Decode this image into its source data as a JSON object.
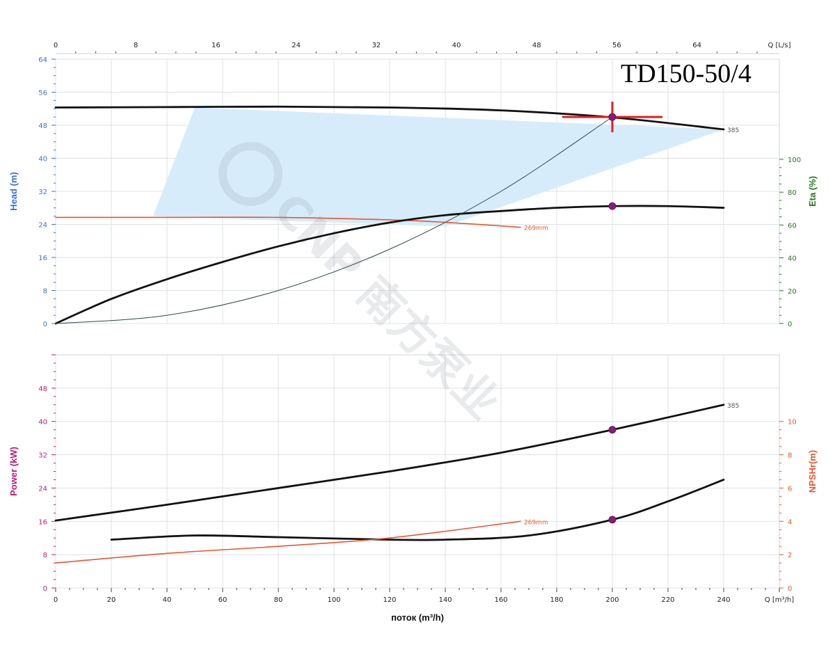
{
  "chart_data": [
    {
      "type": "line",
      "title": "TD150-50/4",
      "x_axis": {
        "label": "",
        "unit_label": "Q [m³/h]",
        "range": [
          0,
          260
        ],
        "ticks": [
          0,
          20,
          40,
          60,
          80,
          100,
          120,
          140,
          160,
          180,
          200,
          220,
          240
        ]
      },
      "x2_axis": {
        "label": "",
        "unit_label": "Q [L/s]",
        "range": [
          0,
          72.22
        ],
        "ticks": [
          0,
          8,
          16,
          24,
          32,
          40,
          48,
          56,
          64
        ]
      },
      "y_axis": {
        "label": "Head (m)",
        "range": [
          0,
          64
        ],
        "ticks": [
          0,
          8,
          16,
          24,
          32,
          40,
          48,
          56,
          64
        ],
        "color": "#3d6fd6"
      },
      "y2_axis": {
        "label": "Eta (%)",
        "range": [
          0,
          161
        ],
        "ticks": [
          0,
          20,
          40,
          60,
          80,
          100
        ],
        "color": "#1f7a1f"
      },
      "series": [
        {
          "name": "385",
          "axis": "y",
          "color": "#111111",
          "x": [
            0,
            40,
            80,
            120,
            160,
            200,
            240
          ],
          "y": [
            52.3,
            52.4,
            52.5,
            52.3,
            51.6,
            49.9,
            47.0
          ]
        },
        {
          "name": "269mm",
          "axis": "y",
          "color": "#e8572a",
          "x": [
            0,
            40,
            80,
            120,
            140,
            167
          ],
          "y": [
            25.7,
            25.7,
            25.7,
            25.1,
            24.5,
            23.3
          ]
        },
        {
          "name": "",
          "axis": "y2",
          "color": "#111111",
          "x": [
            0,
            20,
            40,
            60,
            80,
            100,
            120,
            140,
            160,
            180,
            200,
            220,
            240
          ],
          "y": [
            0,
            15,
            27,
            37.5,
            47,
            55,
            61.5,
            66,
            68.5,
            70.5,
            71.5,
            71.5,
            70.5
          ]
        },
        {
          "name": "",
          "axis": "y",
          "color": "#2c4a4a",
          "x": [
            0,
            40,
            80,
            120,
            160,
            200
          ],
          "y": [
            0,
            2,
            8,
            18,
            32,
            50
          ]
        }
      ],
      "envelope": {
        "color": "#d6ecfb",
        "points": [
          [
            35,
            26
          ],
          [
            50,
            52.3
          ],
          [
            240,
            47
          ],
          [
            140,
            23.5
          ]
        ]
      },
      "duty_point": {
        "x": 200,
        "y": 50,
        "color": "#e02020"
      },
      "markers": [
        {
          "x": 200,
          "y": 50
        },
        {
          "x": 200,
          "y": 71.5,
          "axis": "y2"
        }
      ],
      "marker_color": "#8b1a7a",
      "grid": true
    },
    {
      "type": "line",
      "x_axis": {
        "label": "поток (m³/h)",
        "unit_label": "Q [m³/h]",
        "range": [
          0,
          260
        ],
        "ticks": [
          0,
          20,
          40,
          60,
          80,
          100,
          120,
          140,
          160,
          180,
          200,
          220,
          240
        ]
      },
      "y_axis": {
        "label": "Power (kW)",
        "range": [
          0,
          56
        ],
        "ticks": [
          0,
          8,
          16,
          24,
          32,
          40,
          48
        ],
        "color": "#c0187a"
      },
      "y2_axis": {
        "label": "NPSHr(m)",
        "range": [
          0,
          14
        ],
        "ticks": [
          0,
          2,
          4,
          6,
          8,
          10
        ],
        "color": "#e8572a"
      },
      "series": [
        {
          "name": "385",
          "axis": "y",
          "color": "#111111",
          "x": [
            0,
            40,
            80,
            120,
            160,
            200,
            240
          ],
          "y": [
            16.2,
            20,
            24,
            28,
            32.5,
            38,
            44
          ]
        },
        {
          "name": "",
          "axis": "y2",
          "color": "#111111",
          "x": [
            20,
            50,
            80,
            120,
            140,
            170,
            200,
            220,
            240
          ],
          "y": [
            2.9,
            3.15,
            3.05,
            2.9,
            2.9,
            3.15,
            4.1,
            5.2,
            6.5
          ]
        },
        {
          "name": "269mm",
          "axis": "y",
          "color": "#e8572a",
          "x": [
            0,
            40,
            80,
            120,
            167
          ],
          "y": [
            6,
            8.3,
            10,
            12,
            16
          ]
        }
      ],
      "markers": [
        {
          "x": 200,
          "y": 38
        },
        {
          "x": 200,
          "y": 4.1,
          "axis": "y2"
        }
      ],
      "marker_color": "#8b1a7a",
      "grid": true
    }
  ],
  "watermark": "CNP 南方泵业"
}
